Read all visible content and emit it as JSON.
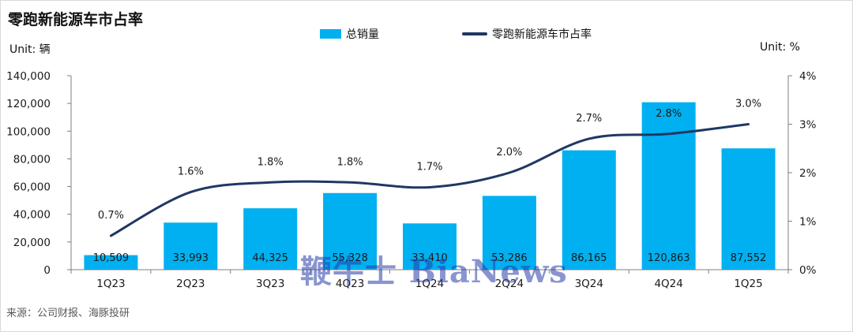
{
  "title": "零跑新能源车市占率",
  "unit_left": "Unit: 辆",
  "unit_right": "Unit:  %",
  "source": "来源：公司财报、海豚投研",
  "watermark": "鞭牛士 BiaNews",
  "legend": {
    "bar_label": "总销量",
    "line_label": "零跑新能源车市占率"
  },
  "colors": {
    "bar": "#00b0f0",
    "line": "#1f3864"
  },
  "chart_data": {
    "type": "bar",
    "title": "零跑新能源车市占率",
    "categories": [
      "1Q23",
      "2Q23",
      "3Q23",
      "4Q23",
      "1Q24",
      "2Q24",
      "3Q24",
      "4Q24",
      "1Q25"
    ],
    "series": [
      {
        "name": "总销量",
        "type": "bar",
        "axis": "left",
        "values": [
          10509,
          33993,
          44325,
          55328,
          33410,
          53286,
          86165,
          120863,
          87552
        ],
        "labels": [
          "10,509",
          "33,993",
          "44,325",
          "55,328",
          "33,410",
          "53,286",
          "86,165",
          "120,863",
          "87,552"
        ]
      },
      {
        "name": "零跑新能源车市占率",
        "type": "line",
        "axis": "right",
        "smooth": true,
        "values": [
          0.7,
          1.6,
          1.8,
          1.8,
          1.7,
          2.0,
          2.7,
          2.8,
          3.0
        ],
        "labels": [
          "0.7%",
          "1.6%",
          "1.8%",
          "1.8%",
          "1.7%",
          "2.0%",
          "2.7%",
          "2.8%",
          "3.0%"
        ]
      }
    ],
    "y_left": {
      "range": [
        0,
        140000
      ],
      "ticks": [
        0,
        20000,
        40000,
        60000,
        80000,
        100000,
        120000,
        140000
      ],
      "tick_labels": [
        "0",
        "20,000",
        "40,000",
        "60,000",
        "80,000",
        "100,000",
        "120,000",
        "140,000"
      ]
    },
    "y_right": {
      "range": [
        0,
        4
      ],
      "ticks": [
        0,
        1,
        2,
        3,
        4
      ],
      "tick_labels": [
        "0%",
        "1%",
        "2%",
        "3%",
        "4%"
      ]
    },
    "grid": false,
    "legend_position": "top-center"
  }
}
